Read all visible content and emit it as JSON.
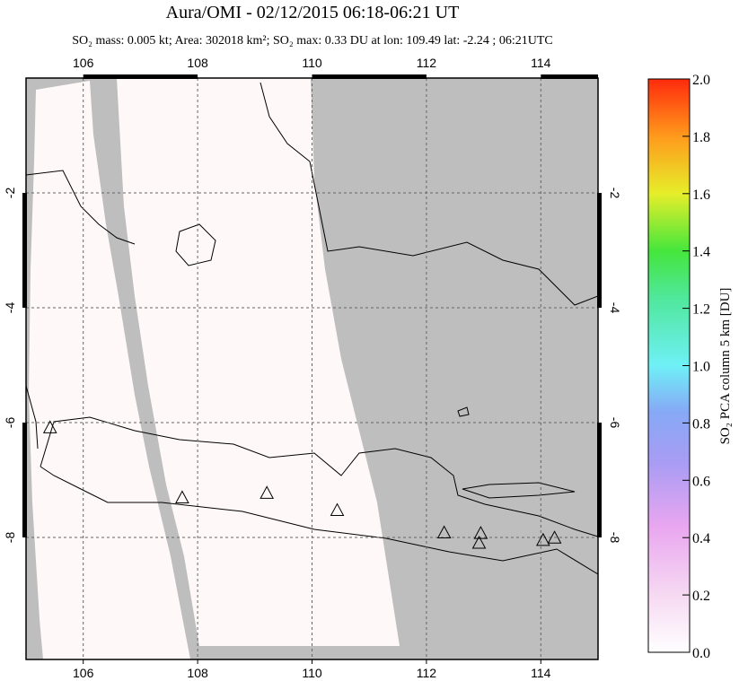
{
  "chart_data": {
    "type": "map",
    "title": "Aura/OMI - 02/12/2015 06:18-06:21 UT",
    "subtitle": "SO₂ mass: 0.005 kt; Area: 302018 km²; SO₂ max: 0.33 DU at lon: 109.49 lat: -2.24 ; 06:21UTC",
    "xlim": [
      105,
      115
    ],
    "ylim": [
      -10.125,
      0
    ],
    "xticks": [
      106,
      108,
      110,
      112,
      114
    ],
    "yticks": [
      -2,
      -4,
      -6,
      -8
    ],
    "grid": true,
    "volcanoes": {
      "lon": [
        105.42,
        107.73,
        109.21,
        110.44,
        112.31,
        112.95,
        112.92,
        114.04,
        114.24
      ],
      "lat": [
        -6.1,
        -7.32,
        -7.24,
        -7.54,
        -7.93,
        -7.94,
        -8.11,
        -8.06,
        -8.02
      ]
    },
    "colorbar": {
      "label": "SO₂ PCA column 5 km [DU]",
      "lim": [
        0,
        2
      ],
      "ticks": [
        {
          "value": 0,
          "label": "0.0"
        },
        {
          "value": 0.2,
          "label": "0.2"
        },
        {
          "value": 0.4,
          "label": "0.4"
        },
        {
          "value": 0.6,
          "label": "0.6"
        },
        {
          "value": 0.8,
          "label": "0.8"
        },
        {
          "value": 1,
          "label": "1.0"
        },
        {
          "value": 1.2,
          "label": "1.2"
        },
        {
          "value": 1.4,
          "label": "1.4"
        },
        {
          "value": 1.6,
          "label": "1.6"
        },
        {
          "value": 1.8,
          "label": "1.8"
        },
        {
          "value": 2,
          "label": "2.0"
        }
      ]
    }
  }
}
